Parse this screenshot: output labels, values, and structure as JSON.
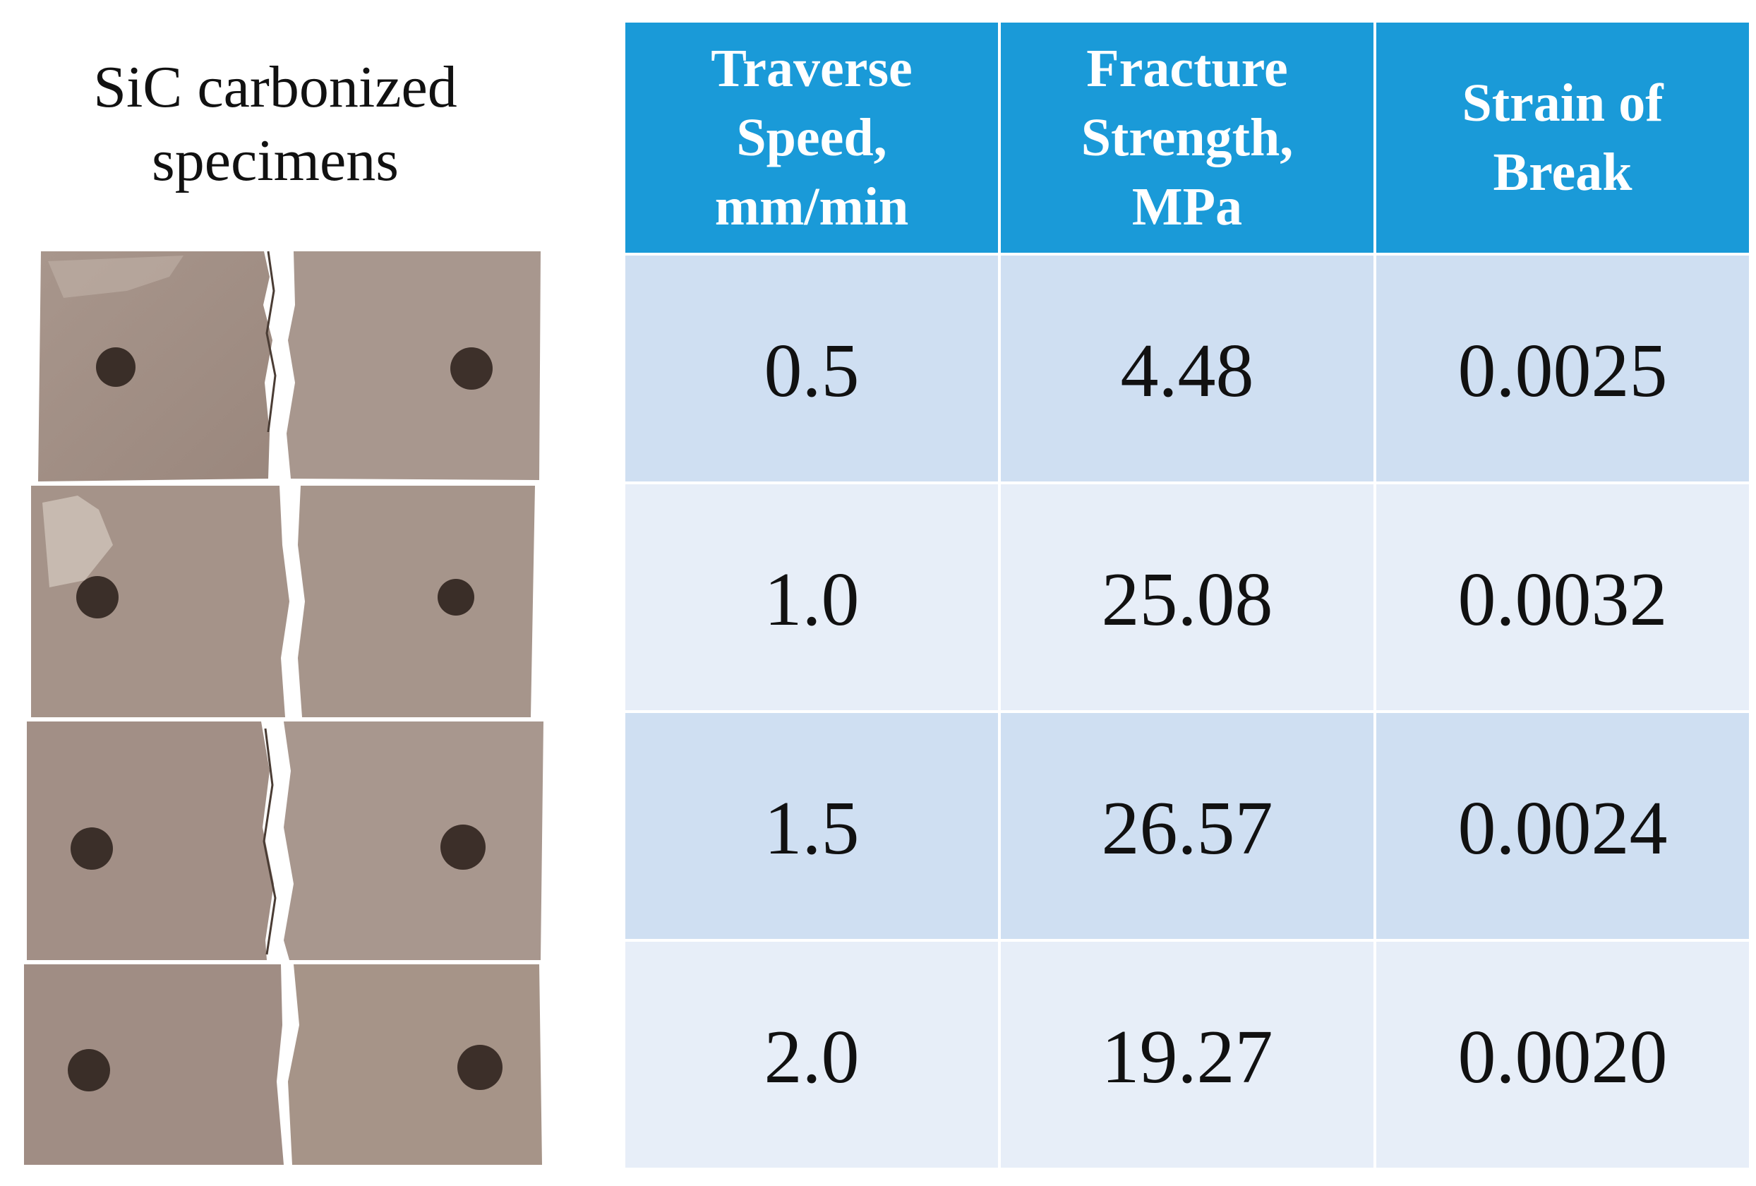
{
  "caption": {
    "line1": "SiC carbonized",
    "line2": "specimens"
  },
  "colors": {
    "header_bg": "#1a9ad8",
    "row_dark": "#cfdff2",
    "row_light": "#e7eef8"
  },
  "table": {
    "headers": [
      {
        "line1": "Traverse",
        "line2": "Speed,",
        "line3": "mm/min"
      },
      {
        "line1": "Fracture",
        "line2": "Strength,",
        "line3": "MPa"
      },
      {
        "line1": "Strain of",
        "line2": "Break",
        "line3": ""
      }
    ],
    "rows": [
      {
        "speed": "0.5",
        "strength": "4.48",
        "strain": "0.0025"
      },
      {
        "speed": "1.0",
        "strength": "25.08",
        "strain": "0.0032"
      },
      {
        "speed": "1.5",
        "strength": "26.57",
        "strain": "0.0024"
      },
      {
        "speed": "2.0",
        "strength": "19.27",
        "strain": "0.0020"
      }
    ]
  }
}
